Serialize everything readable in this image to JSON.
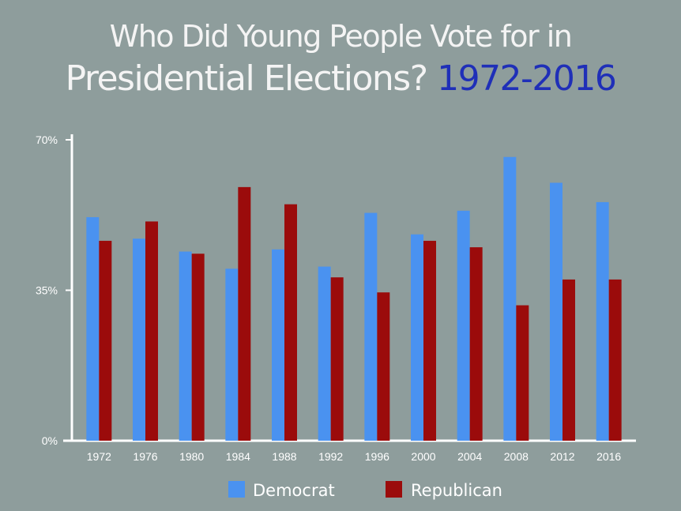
{
  "chart_data": {
    "type": "bar",
    "title_line1": "Who Did Young People Vote for in",
    "title_line2": "Presidential Elections?",
    "title_accent": "1972-2016",
    "xlabel": "",
    "ylabel": "",
    "ylim": [
      0,
      70
    ],
    "yticks": [
      {
        "value": 70,
        "label": "70%"
      },
      {
        "value": 35,
        "label": "35%"
      },
      {
        "value": 0,
        "label": "0%"
      }
    ],
    "categories": [
      "1972",
      "1976",
      "1980",
      "1984",
      "1988",
      "1992",
      "1996",
      "2000",
      "2004",
      "2008",
      "2012",
      "2016"
    ],
    "series": [
      {
        "name": "Democrat",
        "color": "#4a92f0",
        "values": [
          52,
          47,
          44,
          40,
          44.5,
          40.5,
          53,
          48,
          53.5,
          66,
          60,
          55.5
        ]
      },
      {
        "name": "Republican",
        "color": "#9b0b0b",
        "values": [
          46.5,
          51,
          43.5,
          59,
          55,
          38,
          34.5,
          46.5,
          45,
          31.5,
          37.5,
          37.5
        ]
      }
    ],
    "grid": false,
    "legend_position": "bottom"
  }
}
